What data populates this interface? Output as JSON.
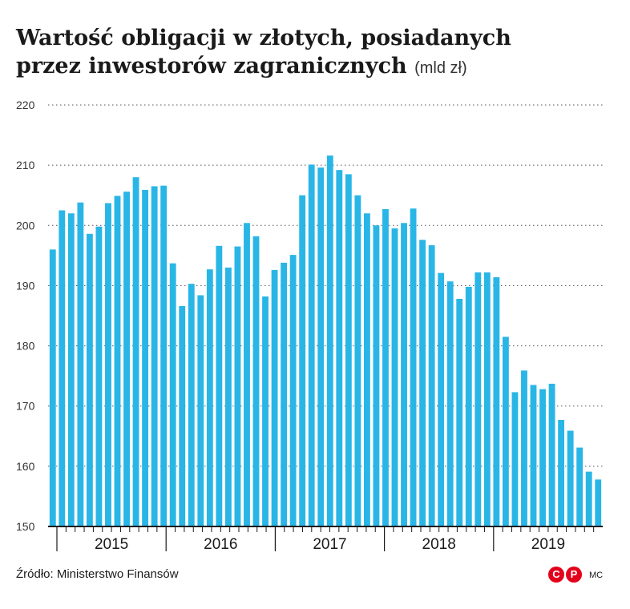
{
  "header": {
    "title_line1": "Wartość obligacji w złotych, posiadanych",
    "title_line2": "przez inwestorów zagranicznych",
    "unit": "(mld zł)"
  },
  "footer": {
    "source": "Źródło: Ministerstwo Finansów",
    "logo_letters": [
      "C",
      "P"
    ],
    "credit": "MC"
  },
  "colors": {
    "bar": "#29b6e6",
    "grid": "#555555",
    "axis": "#1a1a1a",
    "logo": "#e3001b"
  },
  "chart_data": {
    "type": "bar",
    "title": "Wartość obligacji w złotych, posiadanych przez inwestorów zagranicznych",
    "ylabel": "(mld zł)",
    "xlabel": "",
    "ylim": [
      150,
      220
    ],
    "yticks": [
      150,
      160,
      170,
      180,
      190,
      200,
      210,
      220
    ],
    "grid": true,
    "years": [
      "2015",
      "2016",
      "2017",
      "2018",
      "2019"
    ],
    "months_per_year": 12,
    "values": [
      196.0,
      202.5,
      202.0,
      203.8,
      198.6,
      199.8,
      203.7,
      204.9,
      205.6,
      208.0,
      205.9,
      206.5,
      206.6,
      193.7,
      186.6,
      190.3,
      188.4,
      192.7,
      196.6,
      193.0,
      196.5,
      200.4,
      198.2,
      188.2,
      192.6,
      193.8,
      195.1,
      205.0,
      210.1,
      209.6,
      211.6,
      209.2,
      208.5,
      205.0,
      202.0,
      200.0,
      202.7,
      199.5,
      200.4,
      202.8,
      197.6,
      196.7,
      192.1,
      190.7,
      187.8,
      189.8,
      192.2,
      192.2,
      191.4,
      181.5,
      172.3,
      175.9,
      173.5,
      172.8,
      173.7,
      167.7,
      165.9,
      163.1,
      159.1,
      157.8
    ]
  }
}
